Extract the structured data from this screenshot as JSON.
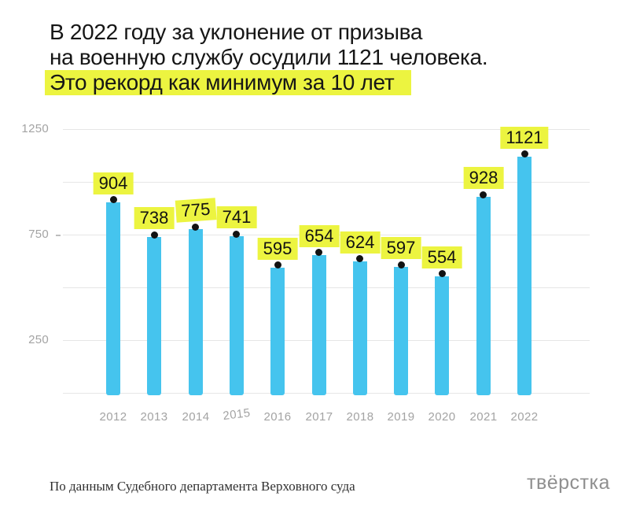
{
  "title": {
    "line1": "В 2022 году за уклонение от призыва",
    "line2": "на военную службу осудили 1121 человека.",
    "line3": "Это рекорд как минимум за 10 лет"
  },
  "chart_data": {
    "type": "bar",
    "title": "В 2022 году за уклонение от призыва на военную службу осудили 1121 человека. Это рекорд как минимум за 10 лет",
    "categories": [
      "2012",
      "2013",
      "2014",
      "2015",
      "2016",
      "2017",
      "2018",
      "2019",
      "2020",
      "2021",
      "2022"
    ],
    "values": [
      904,
      738,
      775,
      741,
      595,
      654,
      624,
      597,
      554,
      928,
      1121
    ],
    "xlabel": "",
    "ylabel": "",
    "ylim": [
      0,
      1250
    ],
    "gridline_values": [
      0,
      250,
      500,
      750,
      1000,
      1250
    ],
    "labeled_ticks": [
      1250,
      750,
      250
    ],
    "grid": "on",
    "legend": "none",
    "value_label_tilts": [
      0,
      0,
      -4,
      0,
      0,
      0,
      0,
      0,
      0,
      0,
      0
    ],
    "category_tilts": [
      0,
      0,
      0,
      -7,
      0,
      0,
      0,
      0,
      0,
      0,
      0
    ],
    "bar_color": "#45c4ee",
    "label_bg_color": "#ecf440",
    "marker_color": "#121212",
    "axis_text_color": "#a3a3a3",
    "gridline_color": "#e6e6e6"
  },
  "footer": {
    "source": "По данным Судебного департамента Верховного суда",
    "logo": "твёрстка"
  },
  "colors": {
    "background": "#ffffff",
    "title_text": "#161616",
    "highlight": "#ecf440"
  }
}
